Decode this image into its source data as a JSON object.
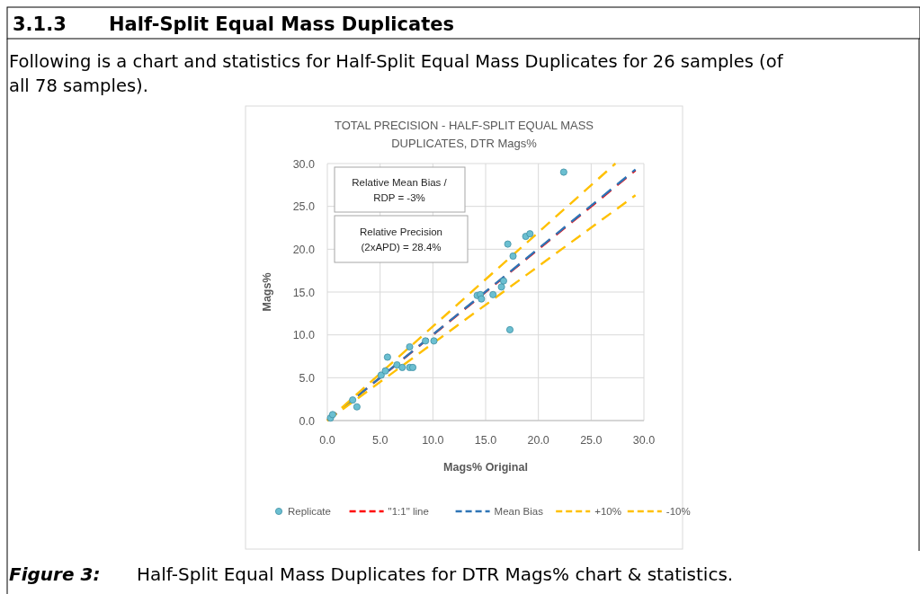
{
  "chart_data": {
    "type": "scatter",
    "title": "TOTAL PRECISION - HALF-SPLIT EQUAL MASS DUPLICATES, DTR Mags%",
    "xlabel": "Mags% Original",
    "ylabel": "Mags%",
    "annotations": [
      "3.1.3",
      "Half-Split Equal Mass Duplicates",
      "Following is a chart and statistics for Half-Split Equal Mass Duplicates for 26 samples (of all 78 samples).",
      "Relative Mean Bias /\nRDP  = -3%",
      "Relative Precision\n(2xAPD) = 28.4%",
      "Figure 3:",
      "Half-Split Equal Mass Duplicates for DTR Mags% chart & statistics."
    ],
    "xlim": [
      0,
      30
    ],
    "xticks": [
      {
        "value": 0,
        "label": "0.0"
      },
      {
        "value": 5,
        "label": "5.0"
      },
      {
        "value": 10,
        "label": "10.0"
      },
      {
        "value": 15,
        "label": "15.0"
      },
      {
        "value": 20,
        "label": "20.0"
      },
      {
        "value": 25,
        "label": "25.0"
      },
      {
        "value": 30,
        "label": "30.0"
      }
    ],
    "ylim": [
      0,
      30
    ],
    "yticks": [
      {
        "value": 0,
        "label": "0.0"
      },
      {
        "value": 5,
        "label": "5.0"
      },
      {
        "value": 10,
        "label": "10.0"
      },
      {
        "value": 15,
        "label": "15.0"
      },
      {
        "value": 20,
        "label": "20.0"
      },
      {
        "value": 25,
        "label": "25.0"
      },
      {
        "value": 30,
        "label": "30.0"
      }
    ],
    "grid": true,
    "legend": "bottom",
    "series": [
      {
        "name": "Replicate",
        "marker": "circle",
        "color": "#6bbfd1",
        "x": [
          0.3,
          0.5,
          2.4,
          2.8,
          5.1,
          5.5,
          5.7,
          6.6,
          7.1,
          7.8,
          7.8,
          8.1,
          9.3,
          10.1,
          14.2,
          14.5,
          14.6,
          15.7,
          16.5,
          16.7,
          17.1,
          17.6,
          17.3,
          18.8,
          19.2,
          22.4
        ],
        "values": [
          0.3,
          0.7,
          2.4,
          1.6,
          5.3,
          5.8,
          7.4,
          6.5,
          6.2,
          8.6,
          6.2,
          6.2,
          9.3,
          9.3,
          14.6,
          14.7,
          14.2,
          14.7,
          15.6,
          16.3,
          20.6,
          19.2,
          10.6,
          21.5,
          21.8,
          29.0
        ]
      },
      {
        "name": "\"1:1\" line",
        "type": "line",
        "marker": "none",
        "line_style": "dashed",
        "color": "#ff0000",
        "x": [
          0,
          29.2
        ],
        "values": [
          0,
          29.2
        ]
      },
      {
        "name": "Mean Bias",
        "type": "line",
        "marker": "none",
        "line_style": "dashed",
        "color": "#2e75b6",
        "x": [
          0,
          29.2
        ],
        "values": [
          0,
          29.3
        ]
      },
      {
        "name": "+10%",
        "type": "line",
        "marker": "none",
        "line_style": "dashed",
        "color": "#ffc000",
        "x": [
          0,
          27.3
        ],
        "values": [
          0,
          30.0
        ]
      },
      {
        "name": "-10%",
        "type": "line",
        "marker": "none",
        "line_style": "dashed",
        "color": "#ffc000",
        "x": [
          0,
          29.2
        ],
        "values": [
          0,
          26.3
        ]
      }
    ]
  }
}
